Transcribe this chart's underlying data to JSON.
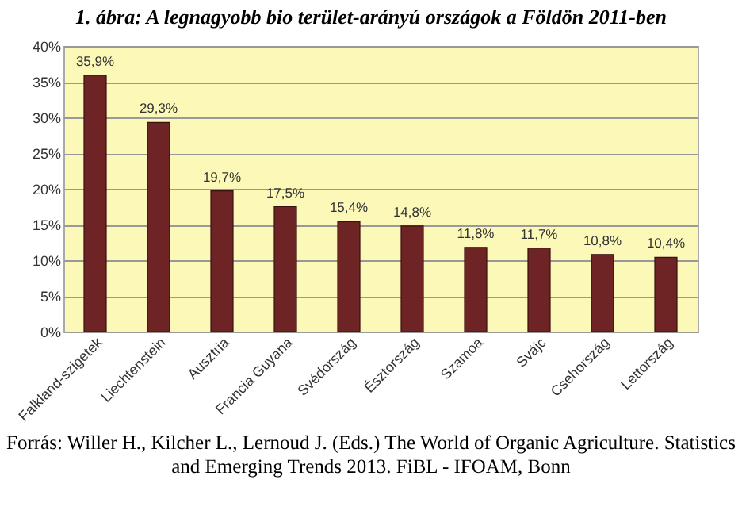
{
  "chart_data": {
    "type": "bar",
    "title": "1. ábra: A legnagyobb bio terület-arányú országok a Földön 2011-ben",
    "categories": [
      "Falkland-szigetek",
      "Liechtenstein",
      "Ausztria",
      "Francia Guyana",
      "Svédország",
      "Észtország",
      "Szamoa",
      "Svájc",
      "Csehország",
      "Lettország"
    ],
    "values": [
      35.9,
      29.3,
      19.7,
      17.5,
      15.4,
      14.8,
      11.8,
      11.7,
      10.8,
      10.4
    ],
    "value_labels": [
      "35,9%",
      "29,3%",
      "19,7%",
      "17,5%",
      "15,4%",
      "14,8%",
      "11,8%",
      "11,7%",
      "10,8%",
      "10,4%"
    ],
    "color": "#6e2424",
    "ylim": [
      0,
      40
    ],
    "yticks": [
      {
        "value": 0,
        "label": "0%"
      },
      {
        "value": 5,
        "label": "5%"
      },
      {
        "value": 10,
        "label": "10%"
      },
      {
        "value": 15,
        "label": "15%"
      },
      {
        "value": 20,
        "label": "20%"
      },
      {
        "value": 25,
        "label": "25%"
      },
      {
        "value": 30,
        "label": "30%"
      },
      {
        "value": 35,
        "label": "35%"
      },
      {
        "value": 40,
        "label": "40%"
      }
    ],
    "grid": "y",
    "annotations": [
      "Forrás: Willer H., Kilcher L., Lernoud J. (Eds.) The World of Organic Agriculture. Statistics and Emerging Trends 2013. FiBL - IFOAM, Bonn"
    ]
  }
}
